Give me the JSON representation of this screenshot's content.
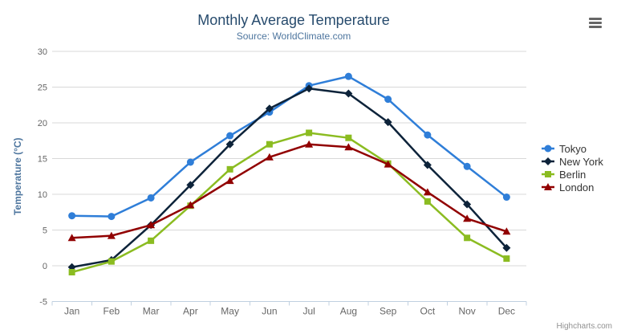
{
  "header": {
    "title": "Monthly Average Temperature",
    "subtitle": "Source: WorldClimate.com"
  },
  "export_menu": {
    "icon": "hamburger-icon"
  },
  "credits": {
    "text": "Highcharts.com"
  },
  "chart_data": {
    "type": "line",
    "title": "Monthly Average Temperature",
    "subtitle": "Source: WorldClimate.com",
    "categories": [
      "Jan",
      "Feb",
      "Mar",
      "Apr",
      "May",
      "Jun",
      "Jul",
      "Aug",
      "Sep",
      "Oct",
      "Nov",
      "Dec"
    ],
    "xlabel": "",
    "ylabel": "Temperature (°C)",
    "ylim": [
      -5,
      30
    ],
    "ytick_interval": 5,
    "grid": true,
    "legend_position": "right",
    "series": [
      {
        "name": "Tokyo",
        "color": "#2f7ed8",
        "marker": "circle",
        "values": [
          7.0,
          6.9,
          9.5,
          14.5,
          18.2,
          21.5,
          25.2,
          26.5,
          23.3,
          18.3,
          13.9,
          9.6
        ]
      },
      {
        "name": "New York",
        "color": "#0d233a",
        "marker": "diamond",
        "values": [
          -0.2,
          0.8,
          5.7,
          11.3,
          17.0,
          22.0,
          24.8,
          24.1,
          20.1,
          14.1,
          8.6,
          2.5
        ]
      },
      {
        "name": "Berlin",
        "color": "#8bbc21",
        "marker": "square",
        "values": [
          -0.9,
          0.6,
          3.5,
          8.4,
          13.5,
          17.0,
          18.6,
          17.9,
          14.3,
          9.0,
          3.9,
          1.0
        ]
      },
      {
        "name": "London",
        "color": "#910000",
        "marker": "triangle",
        "values": [
          3.9,
          4.2,
          5.7,
          8.5,
          11.9,
          15.2,
          17.0,
          16.6,
          14.2,
          10.3,
          6.6,
          4.8
        ]
      }
    ]
  },
  "colors": {
    "title": "#274b6d",
    "subtitle": "#4d759e",
    "axis_title": "#4d759e",
    "tick_label": "#666666",
    "grid_line": "#d8d8d8",
    "axis_line": "#c0d0e0",
    "legend_text": "#333333",
    "credits": "#909090",
    "menu_icon": "#666666",
    "background": "#ffffff"
  }
}
